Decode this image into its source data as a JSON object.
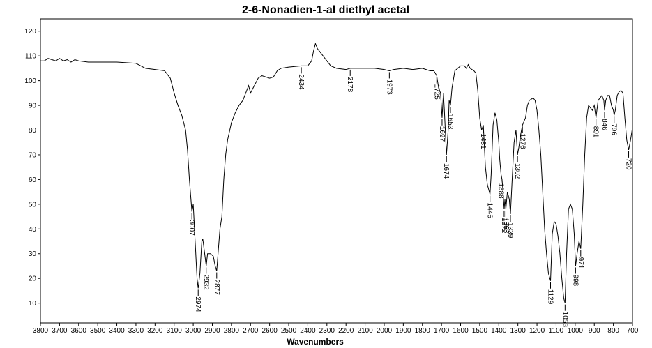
{
  "chart_data": {
    "type": "line",
    "title": "2-6-Nonadien-1-al diethyl acetal",
    "x_label": "Wavenumbers",
    "color": "#000000",
    "grid": false,
    "xlim": [
      3800,
      700
    ],
    "ylim": [
      2,
      125
    ],
    "xticks": [
      3800,
      3700,
      3600,
      3500,
      3400,
      3300,
      3200,
      3100,
      3000,
      2900,
      2800,
      2700,
      2600,
      2500,
      2400,
      2300,
      2200,
      2100,
      2000,
      1900,
      1800,
      1700,
      1600,
      1500,
      1400,
      1300,
      1200,
      1100,
      1000,
      900,
      800,
      700
    ],
    "yticks": [
      10,
      20,
      30,
      40,
      50,
      60,
      70,
      80,
      90,
      100,
      110,
      120
    ],
    "x": [
      3800,
      3780,
      3760,
      3740,
      3720,
      3700,
      3680,
      3660,
      3640,
      3620,
      3600,
      3550,
      3500,
      3400,
      3300,
      3250,
      3200,
      3150,
      3120,
      3100,
      3080,
      3060,
      3040,
      3030,
      3020,
      3010,
      3007,
      3000,
      2990,
      2980,
      2974,
      2965,
      2955,
      2950,
      2940,
      2932,
      2925,
      2910,
      2895,
      2885,
      2877,
      2870,
      2860,
      2850,
      2840,
      2830,
      2820,
      2800,
      2780,
      2760,
      2740,
      2720,
      2710,
      2700,
      2680,
      2660,
      2640,
      2600,
      2580,
      2560,
      2540,
      2500,
      2434,
      2400,
      2380,
      2370,
      2360,
      2350,
      2340,
      2320,
      2300,
      2280,
      2250,
      2200,
      2178,
      2150,
      2100,
      2050,
      2000,
      1973,
      1950,
      1900,
      1850,
      1800,
      1760,
      1740,
      1725,
      1715,
      1705,
      1697,
      1690,
      1685,
      1674,
      1665,
      1660,
      1653,
      1645,
      1630,
      1600,
      1580,
      1570,
      1560,
      1550,
      1530,
      1520,
      1510,
      1500,
      1490,
      1481,
      1470,
      1460,
      1446,
      1440,
      1430,
      1420,
      1410,
      1400,
      1395,
      1388,
      1383,
      1378,
      1372,
      1368,
      1363,
      1355,
      1345,
      1339,
      1330,
      1320,
      1310,
      1302,
      1295,
      1286,
      1276,
      1260,
      1250,
      1240,
      1220,
      1210,
      1200,
      1190,
      1180,
      1170,
      1160,
      1150,
      1140,
      1129,
      1120,
      1110,
      1100,
      1090,
      1080,
      1070,
      1060,
      1053,
      1045,
      1035,
      1025,
      1015,
      1005,
      998,
      990,
      980,
      971,
      960,
      950,
      940,
      930,
      920,
      910,
      900,
      891,
      880,
      870,
      860,
      850,
      846,
      840,
      830,
      820,
      810,
      800,
      796,
      790,
      780,
      770,
      760,
      750,
      740,
      730,
      720,
      710,
      700
    ],
    "values": [
      108,
      108,
      109,
      108.5,
      108,
      109,
      108,
      108.5,
      107.5,
      108.5,
      108,
      107.5,
      107.5,
      107.5,
      107,
      105,
      104.5,
      104,
      101,
      95,
      90,
      86,
      80,
      72,
      60,
      50,
      47,
      50,
      35,
      20,
      16,
      22,
      35,
      36,
      30,
      25,
      30,
      30,
      29,
      25,
      23,
      30,
      40,
      45,
      60,
      70,
      76,
      83,
      87,
      90,
      92,
      96,
      98,
      95,
      98,
      101,
      102,
      101,
      101.5,
      104,
      105,
      105.5,
      106,
      106,
      108,
      112,
      115,
      113,
      112,
      110,
      108,
      106,
      105,
      104.5,
      105,
      105,
      105,
      105,
      104.5,
      104,
      104.5,
      105,
      104.5,
      105,
      104,
      104,
      102,
      97,
      95,
      85,
      95,
      88,
      70,
      80,
      92,
      90,
      97,
      104,
      106,
      106,
      105,
      106.5,
      105,
      104,
      103,
      96,
      85,
      80,
      82,
      65,
      58,
      54,
      62,
      82,
      87,
      84,
      75,
      68,
      62,
      60,
      55,
      48,
      52,
      48,
      55,
      52,
      46,
      60,
      75,
      80,
      70,
      73,
      78,
      82,
      85,
      90,
      92,
      93,
      92,
      88,
      80,
      70,
      55,
      40,
      30,
      22,
      19,
      38,
      43,
      42,
      37,
      30,
      20,
      12,
      10,
      30,
      48,
      50,
      48,
      38,
      25,
      30,
      35,
      32,
      50,
      70,
      85,
      90,
      89,
      88,
      90,
      85,
      92,
      93,
      94,
      92,
      88,
      92,
      94,
      94,
      90,
      88,
      86,
      88,
      94,
      95.5,
      96,
      95,
      85,
      76,
      72,
      76,
      81
    ],
    "peaks": [
      3007,
      2974,
      2932,
      2877,
      2434,
      2178,
      1973,
      1725,
      1697,
      1674,
      1653,
      1481,
      1446,
      1388,
      1372,
      1363,
      1339,
      1302,
      1276,
      1129,
      1053,
      998,
      971,
      891,
      846,
      796,
      720
    ]
  }
}
